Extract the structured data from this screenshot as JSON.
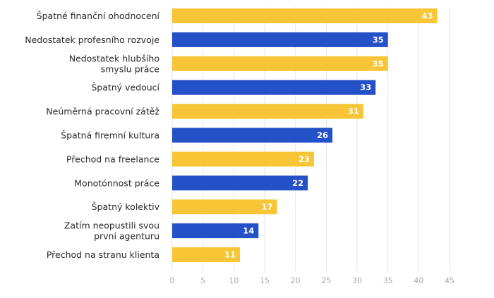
{
  "chart_data": {
    "type": "bar",
    "orientation": "horizontal",
    "categories": [
      "Špatné finanční ohodnocení",
      "Nedostatek profesního rozvoje",
      "Nedostatek hlubšího\nsmyslu práce",
      "Špatný vedoucí",
      "Neúměrná pracovní zátěž",
      "Špatná firemní kultura",
      "Přechod na freelance",
      "Monotónnost práce",
      "Špatný kolektiv",
      "Zatím neopustili svou\nprvní agenturu",
      "Přechod na stranu klienta"
    ],
    "values": [
      43,
      35,
      35,
      33,
      31,
      26,
      23,
      22,
      17,
      14,
      11
    ],
    "bar_colors": [
      "#F7C535",
      "#2450C8",
      "#F7C535",
      "#2450C8",
      "#F7C535",
      "#2450C8",
      "#F7C535",
      "#2450C8",
      "#F7C535",
      "#2450C8",
      "#F7C535"
    ],
    "xlim": [
      0,
      45
    ],
    "xticks": [
      0,
      5,
      10,
      15,
      20,
      25,
      30,
      35,
      40,
      45
    ],
    "grid": "vertical",
    "data_labels": true
  }
}
